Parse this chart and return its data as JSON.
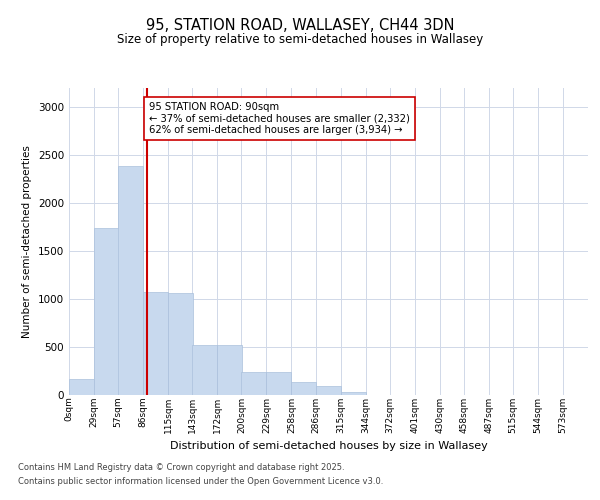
{
  "title_line1": "95, STATION ROAD, WALLASEY, CH44 3DN",
  "title_line2": "Size of property relative to semi-detached houses in Wallasey",
  "xlabel": "Distribution of semi-detached houses by size in Wallasey",
  "ylabel": "Number of semi-detached properties",
  "bar_color": "#c8d9ee",
  "bar_edge_color": "#aac0dc",
  "property_line_color": "#cc0000",
  "property_size": 90,
  "pct_smaller": 37,
  "pct_larger": 62,
  "count_smaller": 2332,
  "count_larger": 3934,
  "annotation_box_color": "#ffffff",
  "annotation_box_edge": "#cc0000",
  "footer_line1": "Contains HM Land Registry data © Crown copyright and database right 2025.",
  "footer_line2": "Contains public sector information licensed under the Open Government Licence v3.0.",
  "bin_labels": [
    "0sqm",
    "29sqm",
    "57sqm",
    "86sqm",
    "115sqm",
    "143sqm",
    "172sqm",
    "200sqm",
    "229sqm",
    "258sqm",
    "286sqm",
    "315sqm",
    "344sqm",
    "372sqm",
    "401sqm",
    "430sqm",
    "458sqm",
    "487sqm",
    "515sqm",
    "544sqm",
    "573sqm"
  ],
  "bin_edges": [
    0,
    29,
    57,
    86,
    115,
    143,
    172,
    200,
    229,
    258,
    286,
    315,
    344,
    372,
    401,
    430,
    458,
    487,
    515,
    544,
    573
  ],
  "bar_heights": [
    170,
    1740,
    2380,
    1070,
    1060,
    520,
    520,
    240,
    240,
    140,
    90,
    30,
    0,
    0,
    0,
    0,
    0,
    0,
    0,
    0
  ],
  "ylim": [
    0,
    3200
  ],
  "yticks": [
    0,
    500,
    1000,
    1500,
    2000,
    2500,
    3000
  ],
  "background_color": "#ffffff",
  "grid_color": "#d0d8e8"
}
